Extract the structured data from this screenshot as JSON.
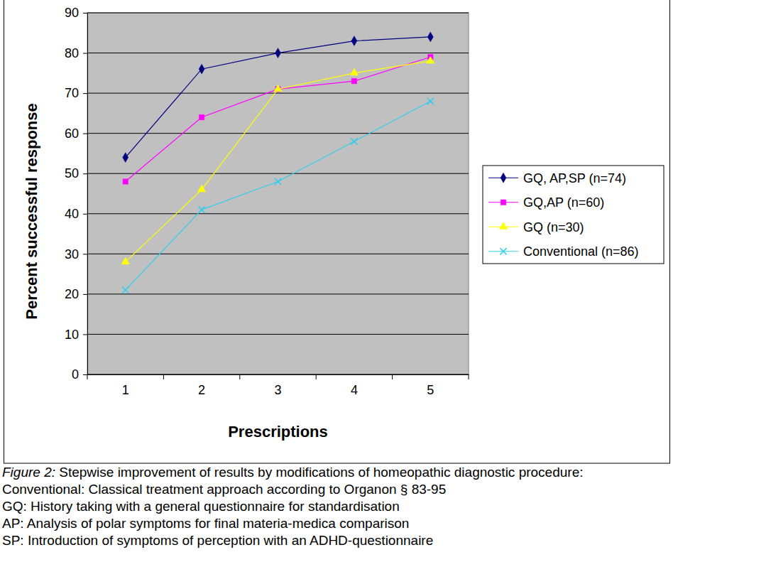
{
  "chart_data": {
    "type": "line",
    "categories": [
      "1",
      "2",
      "3",
      "4",
      "5"
    ],
    "x_label": "Prescriptions",
    "y_label": "Percent successful response",
    "ylim": [
      0,
      90
    ],
    "yticks": [
      0,
      10,
      20,
      30,
      40,
      50,
      60,
      70,
      80,
      90
    ],
    "grid": true,
    "legend": "right",
    "series": [
      {
        "name": "GQ, AP,SP (n=74)",
        "color": "#000080",
        "marker": "diamond",
        "values": [
          54,
          76,
          80,
          83,
          84
        ]
      },
      {
        "name": "GQ,AP (n=60)",
        "color": "#ff00ff",
        "marker": "square",
        "values": [
          48,
          64,
          71,
          73,
          79
        ]
      },
      {
        "name": "GQ (n=30)",
        "color": "#ffff00",
        "marker": "triangle",
        "values": [
          28,
          46,
          71,
          75,
          78
        ]
      },
      {
        "name": "Conventional (n=86)",
        "color": "#33ccee",
        "marker": "x",
        "values": [
          21,
          41,
          48,
          58,
          68
        ]
      }
    ]
  },
  "caption": {
    "label": "Figure 2:",
    "title": "Stepwise improvement of results by modifications of homeopathic diagnostic procedure:",
    "notes": [
      "Conventional: Classical treatment approach according to Organon § 83-95",
      "GQ: History taking with a general questionnaire for standardisation",
      "AP: Analysis of polar symptoms for final materia-medica comparison",
      "SP: Introduction of symptoms of perception with an ADHD-questionnaire"
    ]
  }
}
